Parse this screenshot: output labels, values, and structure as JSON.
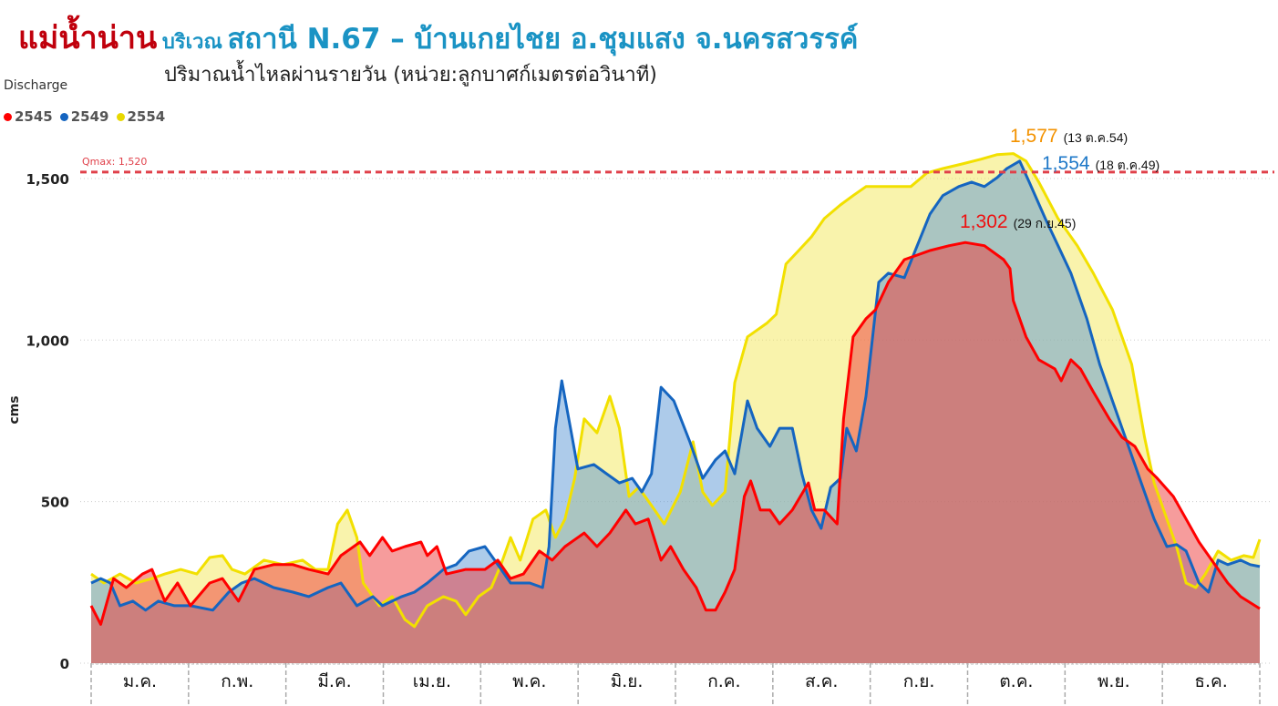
{
  "header": {
    "river": "แม่น้ำน่าน",
    "area": "บริเวณ",
    "station": "สถานี N.67 – บ้านเกยไชย อ.ชุมแสง จ.นครสวรรค์",
    "subtitle": "ปริมาณน้ำไหลผ่านรายวัน (หน่วย:ลูกบาศก์เมตรต่อวินาที)"
  },
  "chart_data": {
    "type": "area",
    "title": "Discharge",
    "xlabel": "",
    "ylabel": "cms",
    "ylim": [
      0,
      1650
    ],
    "yticks": [
      0,
      500,
      1000,
      1500
    ],
    "ytick_labels": [
      "0",
      "500",
      "1,000",
      "1,500"
    ],
    "xlim": [
      0,
      365
    ],
    "categories": [
      "ม.ค.",
      "ก.พ.",
      "มี.ค.",
      "เม.ย.",
      "พ.ค.",
      "มิ.ย.",
      "ก.ค.",
      "ส.ค.",
      "ก.ย.",
      "ต.ค.",
      "พ.ย.",
      "ธ.ค."
    ],
    "grid": true,
    "legend_position": "top-left",
    "reference_line": {
      "label": "Qmax: 1,520",
      "value": 1520,
      "color": "#e0404a"
    },
    "annotations": [
      {
        "value_label": "1,577",
        "date_label": "(13 ต.ค.54)",
        "color": "#f39200"
      },
      {
        "value_label": "1,554",
        "date_label": "(18 ต.ค.49)",
        "color": "#1e78c8"
      },
      {
        "value_label": "1,302",
        "date_label": "(29 ก.ย.45)",
        "color": "#ee1010"
      }
    ],
    "series": [
      {
        "name": "2554",
        "line_color": "#f2e000",
        "fill_color": "#f3e85a",
        "points": [
          [
            0,
            276
          ],
          [
            4,
            248
          ],
          [
            9,
            276
          ],
          [
            14,
            248
          ],
          [
            19,
            262
          ],
          [
            23,
            276
          ],
          [
            28,
            290
          ],
          [
            33,
            276
          ],
          [
            37,
            327
          ],
          [
            41,
            333
          ],
          [
            44,
            290
          ],
          [
            48,
            276
          ],
          [
            54,
            319
          ],
          [
            60,
            305
          ],
          [
            66,
            319
          ],
          [
            70,
            290
          ],
          [
            74,
            290
          ],
          [
            77,
            431
          ],
          [
            80,
            474
          ],
          [
            83,
            389
          ],
          [
            85,
            248
          ],
          [
            90,
            178
          ],
          [
            94,
            206
          ],
          [
            98,
            135
          ],
          [
            101,
            113
          ],
          [
            105,
            178
          ],
          [
            110,
            206
          ],
          [
            114,
            192
          ],
          [
            117,
            150
          ],
          [
            121,
            206
          ],
          [
            125,
            234
          ],
          [
            128,
            305
          ],
          [
            131,
            389
          ],
          [
            134,
            319
          ],
          [
            138,
            446
          ],
          [
            142,
            474
          ],
          [
            145,
            389
          ],
          [
            148,
            446
          ],
          [
            151,
            572
          ],
          [
            154,
            756
          ],
          [
            158,
            713
          ],
          [
            162,
            826
          ],
          [
            165,
            727
          ],
          [
            168,
            516
          ],
          [
            171,
            544
          ],
          [
            175,
            488
          ],
          [
            179,
            431
          ],
          [
            184,
            530
          ],
          [
            188,
            685
          ],
          [
            191,
            530
          ],
          [
            194,
            488
          ],
          [
            198,
            530
          ],
          [
            201,
            868
          ],
          [
            205,
            1010
          ],
          [
            211,
            1052
          ],
          [
            214,
            1080
          ],
          [
            217,
            1235
          ],
          [
            221,
            1277
          ],
          [
            225,
            1320
          ],
          [
            229,
            1376
          ],
          [
            234,
            1418
          ],
          [
            238,
            1447
          ],
          [
            242,
            1475
          ],
          [
            248,
            1475
          ],
          [
            256,
            1475
          ],
          [
            261,
            1517
          ],
          [
            266,
            1531
          ],
          [
            272,
            1545
          ],
          [
            278,
            1560
          ],
          [
            283,
            1574
          ],
          [
            288,
            1577
          ],
          [
            292,
            1554
          ],
          [
            296,
            1489
          ],
          [
            302,
            1376
          ],
          [
            308,
            1292
          ],
          [
            313,
            1207
          ],
          [
            319,
            1094
          ],
          [
            325,
            925
          ],
          [
            329,
            699
          ],
          [
            332,
            558
          ],
          [
            336,
            446
          ],
          [
            339,
            361
          ],
          [
            342,
            248
          ],
          [
            345,
            234
          ],
          [
            348,
            276
          ],
          [
            352,
            347
          ],
          [
            356,
            319
          ],
          [
            360,
            333
          ],
          [
            363,
            327
          ],
          [
            365,
            383
          ]
        ]
      },
      {
        "name": "2549",
        "line_color": "#1565c0",
        "fill_color": "#5b97d6",
        "points": [
          [
            0,
            248
          ],
          [
            3,
            262
          ],
          [
            6,
            248
          ],
          [
            9,
            178
          ],
          [
            13,
            192
          ],
          [
            17,
            164
          ],
          [
            21,
            192
          ],
          [
            26,
            178
          ],
          [
            31,
            178
          ],
          [
            38,
            164
          ],
          [
            43,
            220
          ],
          [
            47,
            248
          ],
          [
            51,
            262
          ],
          [
            57,
            234
          ],
          [
            63,
            220
          ],
          [
            68,
            206
          ],
          [
            74,
            234
          ],
          [
            78,
            248
          ],
          [
            83,
            178
          ],
          [
            88,
            206
          ],
          [
            91,
            178
          ],
          [
            97,
            206
          ],
          [
            101,
            220
          ],
          [
            105,
            248
          ],
          [
            110,
            290
          ],
          [
            114,
            305
          ],
          [
            118,
            347
          ],
          [
            123,
            361
          ],
          [
            127,
            305
          ],
          [
            131,
            248
          ],
          [
            137,
            248
          ],
          [
            141,
            234
          ],
          [
            143,
            361
          ],
          [
            145,
            727
          ],
          [
            147,
            874
          ],
          [
            150,
            713
          ],
          [
            152,
            601
          ],
          [
            157,
            615
          ],
          [
            161,
            586
          ],
          [
            165,
            558
          ],
          [
            169,
            572
          ],
          [
            172,
            530
          ],
          [
            175,
            586
          ],
          [
            178,
            854
          ],
          [
            182,
            812
          ],
          [
            187,
            685
          ],
          [
            191,
            572
          ],
          [
            195,
            629
          ],
          [
            198,
            657
          ],
          [
            201,
            586
          ],
          [
            205,
            812
          ],
          [
            208,
            727
          ],
          [
            212,
            671
          ],
          [
            215,
            727
          ],
          [
            219,
            727
          ],
          [
            222,
            586
          ],
          [
            225,
            474
          ],
          [
            228,
            417
          ],
          [
            231,
            544
          ],
          [
            234,
            572
          ],
          [
            236,
            727
          ],
          [
            239,
            657
          ],
          [
            242,
            826
          ],
          [
            246,
            1179
          ],
          [
            249,
            1207
          ],
          [
            254,
            1193
          ],
          [
            258,
            1292
          ],
          [
            262,
            1390
          ],
          [
            266,
            1447
          ],
          [
            271,
            1475
          ],
          [
            275,
            1489
          ],
          [
            279,
            1475
          ],
          [
            283,
            1503
          ],
          [
            286,
            1531
          ],
          [
            290,
            1554
          ],
          [
            293,
            1489
          ],
          [
            298,
            1376
          ],
          [
            302,
            1292
          ],
          [
            306,
            1207
          ],
          [
            311,
            1066
          ],
          [
            315,
            925
          ],
          [
            319,
            812
          ],
          [
            323,
            699
          ],
          [
            328,
            558
          ],
          [
            332,
            446
          ],
          [
            336,
            361
          ],
          [
            339,
            367
          ],
          [
            342,
            347
          ],
          [
            346,
            248
          ],
          [
            349,
            220
          ],
          [
            352,
            319
          ],
          [
            355,
            305
          ],
          [
            359,
            319
          ],
          [
            362,
            305
          ],
          [
            365,
            299
          ]
        ]
      },
      {
        "name": "2545",
        "line_color": "#ff0000",
        "fill_color": "#ee3a3a",
        "points": [
          [
            0,
            178
          ],
          [
            3,
            120
          ],
          [
            7,
            262
          ],
          [
            11,
            234
          ],
          [
            16,
            276
          ],
          [
            19,
            290
          ],
          [
            23,
            192
          ],
          [
            27,
            248
          ],
          [
            31,
            178
          ],
          [
            37,
            248
          ],
          [
            41,
            262
          ],
          [
            46,
            192
          ],
          [
            51,
            290
          ],
          [
            57,
            305
          ],
          [
            63,
            305
          ],
          [
            68,
            290
          ],
          [
            74,
            276
          ],
          [
            78,
            333
          ],
          [
            84,
            375
          ],
          [
            87,
            333
          ],
          [
            91,
            389
          ],
          [
            94,
            347
          ],
          [
            98,
            361
          ],
          [
            103,
            375
          ],
          [
            105,
            333
          ],
          [
            108,
            361
          ],
          [
            111,
            276
          ],
          [
            117,
            290
          ],
          [
            123,
            290
          ],
          [
            127,
            319
          ],
          [
            131,
            262
          ],
          [
            135,
            276
          ],
          [
            140,
            347
          ],
          [
            144,
            319
          ],
          [
            148,
            361
          ],
          [
            154,
            403
          ],
          [
            158,
            361
          ],
          [
            162,
            403
          ],
          [
            167,
            474
          ],
          [
            170,
            431
          ],
          [
            174,
            446
          ],
          [
            178,
            319
          ],
          [
            181,
            361
          ],
          [
            185,
            290
          ],
          [
            189,
            234
          ],
          [
            192,
            164
          ],
          [
            195,
            164
          ],
          [
            198,
            220
          ],
          [
            201,
            290
          ],
          [
            204,
            516
          ],
          [
            206,
            564
          ],
          [
            209,
            474
          ],
          [
            212,
            474
          ],
          [
            215,
            431
          ],
          [
            219,
            474
          ],
          [
            224,
            558
          ],
          [
            226,
            474
          ],
          [
            229,
            474
          ],
          [
            233,
            431
          ],
          [
            235,
            756
          ],
          [
            238,
            1010
          ],
          [
            242,
            1066
          ],
          [
            245,
            1094
          ],
          [
            249,
            1179
          ],
          [
            254,
            1249
          ],
          [
            258,
            1263
          ],
          [
            262,
            1277
          ],
          [
            268,
            1292
          ],
          [
            273,
            1302
          ],
          [
            279,
            1292
          ],
          [
            285,
            1249
          ],
          [
            287,
            1221
          ],
          [
            288,
            1122
          ],
          [
            292,
            1010
          ],
          [
            296,
            939
          ],
          [
            301,
            911
          ],
          [
            303,
            874
          ],
          [
            306,
            939
          ],
          [
            309,
            911
          ],
          [
            313,
            840
          ],
          [
            318,
            756
          ],
          [
            322,
            699
          ],
          [
            326,
            671
          ],
          [
            330,
            601
          ],
          [
            333,
            572
          ],
          [
            338,
            516
          ],
          [
            342,
            446
          ],
          [
            346,
            375
          ],
          [
            350,
            319
          ],
          [
            355,
            248
          ],
          [
            359,
            206
          ],
          [
            365,
            169
          ]
        ]
      }
    ],
    "legend_order": [
      "2545",
      "2549",
      "2554"
    ]
  },
  "legend": [
    {
      "label": "2545",
      "color": "#ff0000"
    },
    {
      "label": "2549",
      "color": "#1565c0"
    },
    {
      "label": "2554",
      "color": "#e8d800"
    }
  ]
}
